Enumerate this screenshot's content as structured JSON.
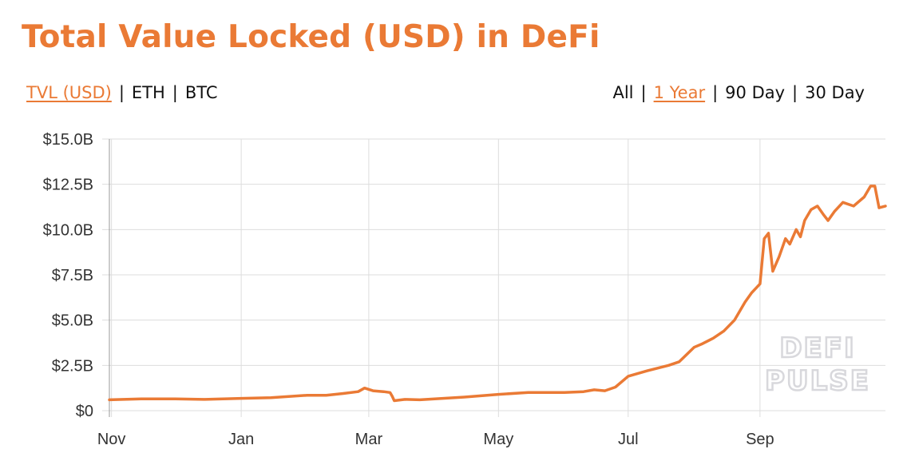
{
  "page": {
    "title": "Total Value Locked (USD) in DeFi"
  },
  "currency_toggle": [
    {
      "label": "TVL (USD)",
      "active": true
    },
    {
      "label": "ETH",
      "active": false
    },
    {
      "label": "BTC",
      "active": false
    }
  ],
  "range_toggle": [
    {
      "label": "All",
      "active": false
    },
    {
      "label": "1 Year",
      "active": true
    },
    {
      "label": "90 Day",
      "active": false
    },
    {
      "label": "30 Day",
      "active": false
    }
  ],
  "separator": "|",
  "watermark": [
    "DEFI",
    "PULSE"
  ],
  "colors": {
    "accent": "#EA7A35",
    "grid": "#dddddd",
    "axis": "#999999"
  },
  "chart_data": {
    "type": "line",
    "title": "",
    "xlabel": "",
    "ylabel": "",
    "ylim": [
      0,
      15
    ],
    "y_unit": "billion USD",
    "yticks": [
      0,
      2.5,
      5,
      7.5,
      10,
      12.5,
      15
    ],
    "ytick_labels": [
      "$0",
      "$2.5B",
      "$5.0B",
      "$7.5B",
      "$10.0B",
      "$12.5B",
      "$15.0B"
    ],
    "xticks": [
      "2019-11-01",
      "2020-01-01",
      "2020-03-01",
      "2020-05-01",
      "2020-07-01",
      "2020-09-01"
    ],
    "xtick_labels": [
      "Nov",
      "Jan",
      "Mar",
      "May",
      "Jul",
      "Sep"
    ],
    "xlim": [
      "2019-10-31",
      "2020-10-30"
    ],
    "grid": true,
    "legend": "none",
    "series": [
      {
        "color": "#EA7A35",
        "points": [
          [
            "2019-10-31",
            0.6
          ],
          [
            "2019-11-15",
            0.65
          ],
          [
            "2019-12-01",
            0.65
          ],
          [
            "2019-12-15",
            0.62
          ],
          [
            "2020-01-01",
            0.68
          ],
          [
            "2020-01-15",
            0.72
          ],
          [
            "2020-02-01",
            0.85
          ],
          [
            "2020-02-10",
            0.85
          ],
          [
            "2020-02-18",
            0.95
          ],
          [
            "2020-02-25",
            1.05
          ],
          [
            "2020-02-28",
            1.25
          ],
          [
            "2020-03-03",
            1.1
          ],
          [
            "2020-03-08",
            1.05
          ],
          [
            "2020-03-11",
            1.0
          ],
          [
            "2020-03-12",
            0.8
          ],
          [
            "2020-03-13",
            0.55
          ],
          [
            "2020-03-18",
            0.62
          ],
          [
            "2020-03-25",
            0.6
          ],
          [
            "2020-04-01",
            0.65
          ],
          [
            "2020-04-15",
            0.75
          ],
          [
            "2020-05-01",
            0.9
          ],
          [
            "2020-05-15",
            1.0
          ],
          [
            "2020-06-01",
            1.0
          ],
          [
            "2020-06-10",
            1.05
          ],
          [
            "2020-06-15",
            1.15
          ],
          [
            "2020-06-20",
            1.1
          ],
          [
            "2020-06-25",
            1.3
          ],
          [
            "2020-07-01",
            1.9
          ],
          [
            "2020-07-10",
            2.2
          ],
          [
            "2020-07-20",
            2.5
          ],
          [
            "2020-07-25",
            2.7
          ],
          [
            "2020-08-01",
            3.5
          ],
          [
            "2020-08-05",
            3.7
          ],
          [
            "2020-08-10",
            4.0
          ],
          [
            "2020-08-15",
            4.4
          ],
          [
            "2020-08-20",
            5.0
          ],
          [
            "2020-08-25",
            6.0
          ],
          [
            "2020-08-28",
            6.5
          ],
          [
            "2020-09-01",
            7.0
          ],
          [
            "2020-09-03",
            9.5
          ],
          [
            "2020-09-05",
            9.8
          ],
          [
            "2020-09-07",
            7.7
          ],
          [
            "2020-09-10",
            8.5
          ],
          [
            "2020-09-13",
            9.5
          ],
          [
            "2020-09-15",
            9.2
          ],
          [
            "2020-09-18",
            10.0
          ],
          [
            "2020-09-20",
            9.6
          ],
          [
            "2020-09-22",
            10.5
          ],
          [
            "2020-09-25",
            11.1
          ],
          [
            "2020-09-28",
            11.3
          ],
          [
            "2020-10-01",
            10.8
          ],
          [
            "2020-10-03",
            10.5
          ],
          [
            "2020-10-06",
            11.0
          ],
          [
            "2020-10-10",
            11.5
          ],
          [
            "2020-10-15",
            11.3
          ],
          [
            "2020-10-20",
            11.8
          ],
          [
            "2020-10-23",
            12.4
          ],
          [
            "2020-10-25",
            12.4
          ],
          [
            "2020-10-27",
            11.2
          ],
          [
            "2020-10-30",
            11.3
          ]
        ]
      }
    ]
  }
}
